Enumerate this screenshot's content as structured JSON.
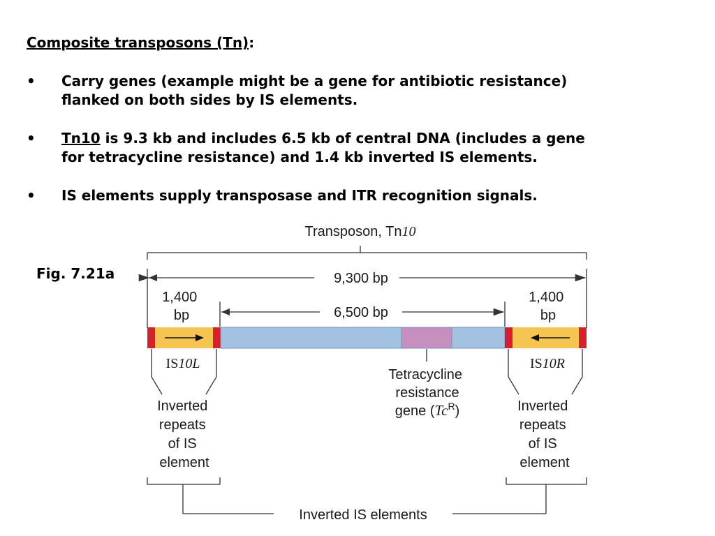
{
  "heading": {
    "title": "Composite transposons (Tn)",
    "colon": ":"
  },
  "bullets": [
    {
      "symbol": "•",
      "lines": [
        "Carry genes (example might be a gene for antibiotic resistance)",
        "flanked on both sides by IS elements."
      ]
    },
    {
      "symbol": "•",
      "underlined": "Tn10",
      "line1_rest": " is 9.3 kb and includes 6.5 kb of central DNA (includes a gene",
      "line2": "for tetracycline resistance) and 1.4 kb inverted IS elements."
    },
    {
      "symbol": "•",
      "lines": [
        "IS elements supply transposase and ITR recognition signals."
      ]
    }
  ],
  "figure": {
    "label": "Fig. 7.21a",
    "title_prefix": "Transposon, Tn",
    "title_italic": "10",
    "total_length": "9,300 bp",
    "central_length": "6,500 bp",
    "is_length_line1": "1,400",
    "is_length_line2": "bp",
    "left_is_prefix": "IS",
    "left_is_italic": "10L",
    "right_is_prefix": "IS",
    "right_is_italic": "10R",
    "tet_line1": "Tetracycline",
    "tet_line2": "resistance",
    "tet_line3_prefix": "gene (",
    "tet_line3_italic": "Tc",
    "tet_line3_sup": "R",
    "tet_line3_suffix": ")",
    "inverted_repeats_lines": [
      "Inverted",
      "repeats",
      "of IS",
      "element"
    ],
    "bottom_label": "Inverted IS elements",
    "colors": {
      "is_element": "#f5c451",
      "inverted_repeat": "#d7202e",
      "central_dna": "#a3c2e2",
      "tet_gene": "#c68fbe",
      "line": "#333333"
    }
  }
}
